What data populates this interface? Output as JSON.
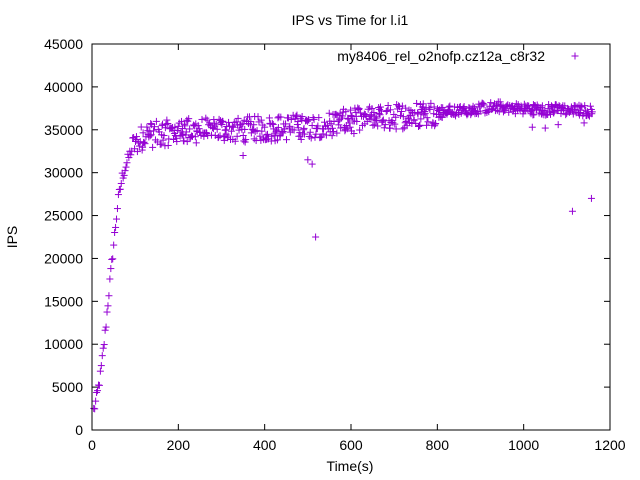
{
  "chart_data": {
    "type": "scatter",
    "title": "IPS vs Time for l.i1",
    "xlabel": "Time(s)",
    "ylabel": "IPS",
    "xlim": [
      0,
      1200
    ],
    "ylim": [
      0,
      45000
    ],
    "x_ticks": [
      0,
      200,
      400,
      600,
      800,
      1000,
      1200
    ],
    "y_ticks": [
      0,
      5000,
      10000,
      15000,
      20000,
      25000,
      30000,
      35000,
      40000,
      45000
    ],
    "grid": false,
    "legend_position": "top-right",
    "marker": "+",
    "series": [
      {
        "name": "my8406_rel_o2nofp.cz12a_c8r32",
        "color": "#9400d3",
        "trend": [
          [
            0,
            1500
          ],
          [
            10,
            3500
          ],
          [
            20,
            6500
          ],
          [
            30,
            11000
          ],
          [
            40,
            16500
          ],
          [
            50,
            21500
          ],
          [
            60,
            26500
          ],
          [
            70,
            29500
          ],
          [
            80,
            31000
          ],
          [
            90,
            32500
          ],
          [
            100,
            33500
          ],
          [
            120,
            34200
          ],
          [
            150,
            34500
          ],
          [
            200,
            34800
          ],
          [
            300,
            35000
          ],
          [
            400,
            35100
          ],
          [
            500,
            35400
          ],
          [
            600,
            36000
          ],
          [
            700,
            36500
          ],
          [
            800,
            37000
          ],
          [
            900,
            37500
          ],
          [
            950,
            37700
          ],
          [
            1000,
            37400
          ],
          [
            1100,
            37300
          ],
          [
            1160,
            37200
          ]
        ],
        "outliers": [
          [
            518,
            22500
          ],
          [
            510,
            31000
          ],
          [
            1113,
            25500
          ],
          [
            1157,
            27000
          ],
          [
            1020,
            35300
          ],
          [
            1050,
            35200
          ],
          [
            1080,
            35600
          ],
          [
            1140,
            35800
          ],
          [
            500,
            31500
          ],
          [
            350,
            32000
          ]
        ]
      }
    ]
  }
}
